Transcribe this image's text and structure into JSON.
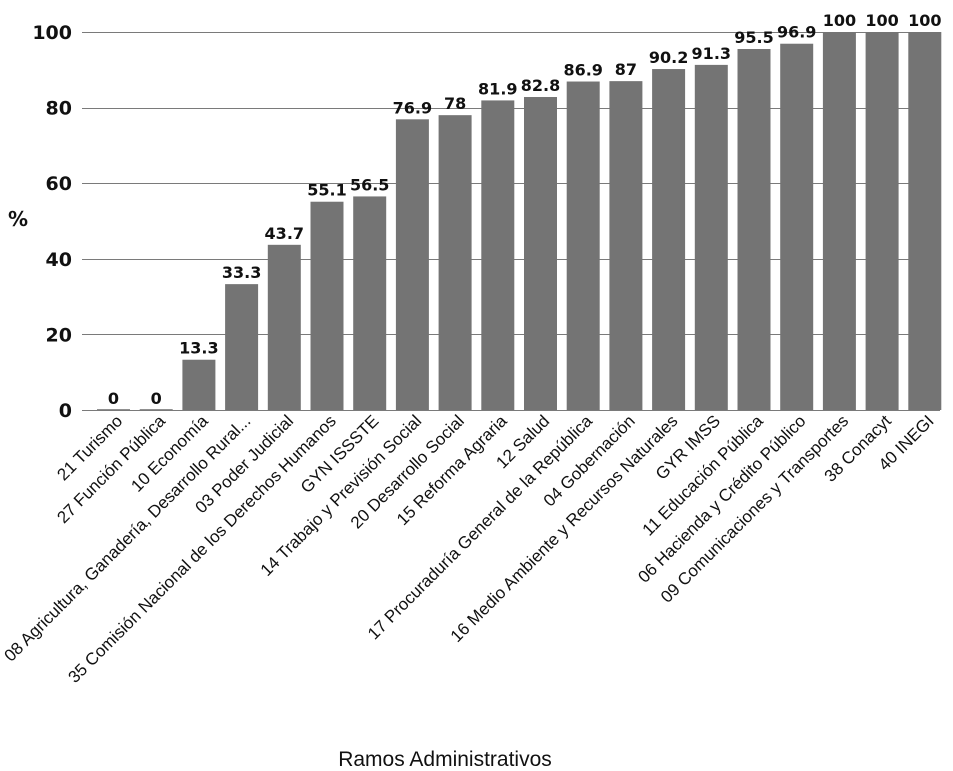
{
  "chart_data": {
    "type": "bar",
    "categories": [
      "21 Turismo",
      "27 Función Pública",
      "10 Economía",
      "08 Agricultura, Ganadería, Desarrollo Rural...",
      "03 Poder Judicial",
      "35 Comisión Nacional de los Derechos Humanos",
      "GYN ISSSTE",
      "14 Trabajo y Previsión Social",
      "20 Desarrollo Social",
      "15 Reforma Agraria",
      "12 Salud",
      "17 Procuraduría General de la República",
      "04 Gobernación",
      "16 Medio Ambiente y Recursos Naturales",
      "GYR IMSS",
      "11 Educación Pública",
      "06 Hacienda y Crédito Público",
      "09 Comunicaciones y Transportes",
      "38 Conacyt",
      "40 INEGI"
    ],
    "values": [
      0,
      0,
      13.3,
      33.3,
      43.7,
      55.1,
      56.5,
      76.9,
      78,
      81.9,
      82.8,
      86.9,
      87,
      90.2,
      91.3,
      95.5,
      96.9,
      100,
      100,
      100
    ],
    "data_labels": [
      "0",
      "0",
      "13.3",
      "33.3",
      "43.7",
      "55.1",
      "56.5",
      "76.9",
      "78",
      "81.9",
      "82.8",
      "86.9",
      "87",
      "90.2",
      "91.3",
      "95.5",
      "96.9",
      "100",
      "100",
      "100"
    ],
    "title": "",
    "xlabel": "Ramos Administrativos",
    "ylabel": "%",
    "ylim": [
      0,
      100
    ],
    "yticks": [
      0,
      20,
      40,
      60,
      80,
      100
    ],
    "grid": "horizontal",
    "legend": "none",
    "colors": {
      "bar": "#747474",
      "grid": "#7a7a7a",
      "text": "#111111"
    }
  }
}
